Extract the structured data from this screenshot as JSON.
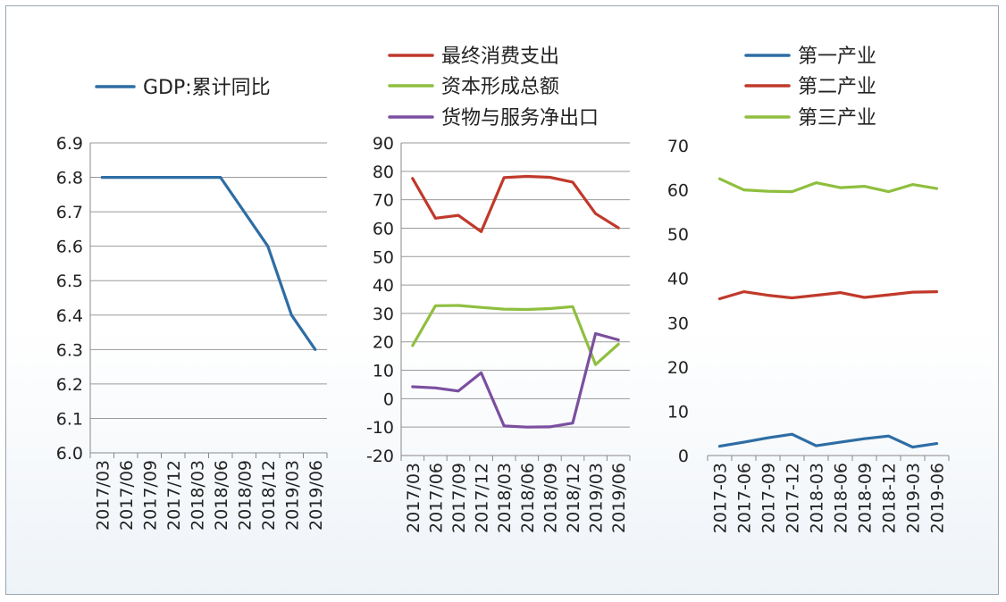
{
  "chart_data": [
    {
      "type": "line",
      "x": [
        "2017/03",
        "2017/06",
        "2017/09",
        "2017/12",
        "2018/03",
        "2018/06",
        "2018/09",
        "2018/12",
        "2019/03",
        "2019/06"
      ],
      "series": [
        {
          "name": "GDP:累计同比",
          "color": "#2e6da4",
          "values": [
            6.8,
            6.8,
            6.8,
            6.8,
            6.8,
            6.8,
            6.7,
            6.6,
            6.4,
            6.3
          ]
        }
      ],
      "ylim": [
        6.0,
        6.9
      ],
      "yticks": [
        "6.9",
        "6.8",
        "6.7",
        "6.6",
        "6.5",
        "6.4",
        "6.3",
        "6.2",
        "6.1",
        "6.0"
      ],
      "grid": true,
      "legend": "top"
    },
    {
      "type": "line",
      "x": [
        "2017/03",
        "2017/06",
        "2017/09",
        "2017/12",
        "2018/03",
        "2018/06",
        "2018/09",
        "2018/12",
        "2019/03",
        "2019/06"
      ],
      "series": [
        {
          "name": "最终消费支出",
          "color": "#c0392b",
          "values": [
            77.5,
            63.5,
            64.5,
            58.8,
            77.8,
            78.2,
            77.9,
            76.2,
            65.1,
            60.1
          ]
        },
        {
          "name": "资本形成总额",
          "color": "#8fbf3f",
          "values": [
            18.7,
            32.7,
            32.8,
            32.1,
            31.5,
            31.4,
            31.7,
            32.4,
            12.0,
            19.2
          ]
        },
        {
          "name": "货物与服务净出口",
          "color": "#7b4fa0",
          "values": [
            4.2,
            3.8,
            2.7,
            9.1,
            -9.6,
            -10.0,
            -9.9,
            -8.6,
            22.9,
            20.7
          ]
        }
      ],
      "ylim": [
        -20,
        90
      ],
      "yticks": [
        "90",
        "80",
        "70",
        "60",
        "50",
        "40",
        "30",
        "20",
        "10",
        "0",
        "-10",
        "-20"
      ],
      "grid": true,
      "legend": "top"
    },
    {
      "type": "line",
      "x": [
        "2017-03",
        "2017-06",
        "2017-09",
        "2017-12",
        "2018-03",
        "2018-06",
        "2018-09",
        "2018-12",
        "2019-03",
        "2019-06"
      ],
      "series": [
        {
          "name": "第一产业",
          "color": "#2e6da4",
          "values": [
            2.1,
            3.0,
            4.0,
            4.8,
            2.2,
            3.0,
            3.8,
            4.4,
            1.9,
            2.7
          ]
        },
        {
          "name": "第二产业",
          "color": "#c0392b",
          "values": [
            35.4,
            37.0,
            36.2,
            35.6,
            36.2,
            36.8,
            35.7,
            36.3,
            36.9,
            37.0
          ]
        },
        {
          "name": "第三产业",
          "color": "#8fbf3f",
          "values": [
            62.5,
            60.0,
            59.7,
            59.6,
            61.6,
            60.5,
            60.8,
            59.6,
            61.2,
            60.3
          ]
        }
      ],
      "ylim": [
        0,
        70
      ],
      "yticks": [
        "70",
        "60",
        "50",
        "40",
        "30",
        "20",
        "10",
        "0"
      ],
      "grid": false,
      "legend": "top-right"
    }
  ]
}
